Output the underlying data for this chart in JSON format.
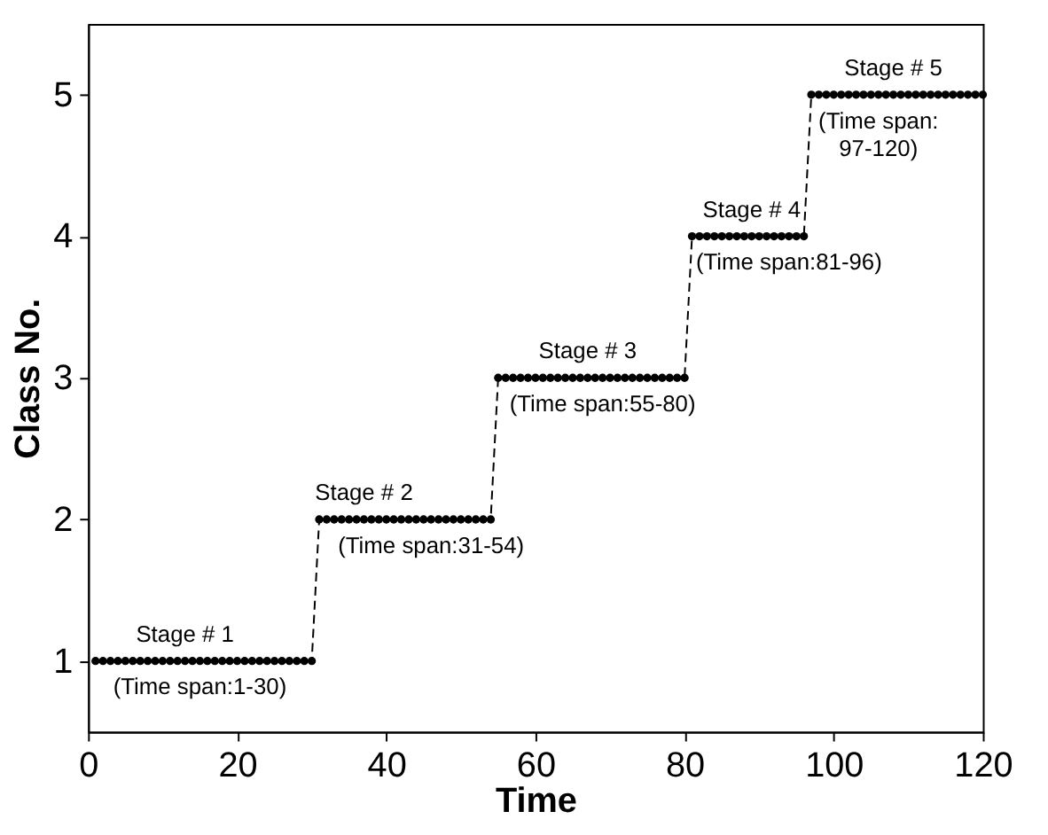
{
  "chart_data": {
    "type": "line",
    "xlabel": "Time",
    "ylabel": "Class No.",
    "x": [
      1,
      2,
      3,
      4,
      5,
      6,
      7,
      8,
      9,
      10,
      11,
      12,
      13,
      14,
      15,
      16,
      17,
      18,
      19,
      20,
      21,
      22,
      23,
      24,
      25,
      26,
      27,
      28,
      29,
      30,
      31,
      32,
      33,
      34,
      35,
      36,
      37,
      38,
      39,
      40,
      41,
      42,
      43,
      44,
      45,
      46,
      47,
      48,
      49,
      50,
      51,
      52,
      53,
      54,
      55,
      56,
      57,
      58,
      59,
      60,
      61,
      62,
      63,
      64,
      65,
      66,
      67,
      68,
      69,
      70,
      71,
      72,
      73,
      74,
      75,
      76,
      77,
      78,
      79,
      80,
      81,
      82,
      83,
      84,
      85,
      86,
      87,
      88,
      89,
      90,
      91,
      92,
      93,
      94,
      95,
      96,
      97,
      98,
      99,
      100,
      101,
      102,
      103,
      104,
      105,
      106,
      107,
      108,
      109,
      110,
      111,
      112,
      113,
      114,
      115,
      116,
      117,
      118,
      119,
      120
    ],
    "series": [
      {
        "color": "#000000",
        "values": [
          1,
          1,
          1,
          1,
          1,
          1,
          1,
          1,
          1,
          1,
          1,
          1,
          1,
          1,
          1,
          1,
          1,
          1,
          1,
          1,
          1,
          1,
          1,
          1,
          1,
          1,
          1,
          1,
          1,
          1,
          2,
          2,
          2,
          2,
          2,
          2,
          2,
          2,
          2,
          2,
          2,
          2,
          2,
          2,
          2,
          2,
          2,
          2,
          2,
          2,
          2,
          2,
          2,
          2,
          3,
          3,
          3,
          3,
          3,
          3,
          3,
          3,
          3,
          3,
          3,
          3,
          3,
          3,
          3,
          3,
          3,
          3,
          3,
          3,
          3,
          3,
          3,
          3,
          3,
          3,
          4,
          4,
          4,
          4,
          4,
          4,
          4,
          4,
          4,
          4,
          4,
          4,
          4,
          4,
          4,
          4,
          5,
          5,
          5,
          5,
          5,
          5,
          5,
          5,
          5,
          5,
          5,
          5,
          5,
          5,
          5,
          5,
          5,
          5,
          5,
          5,
          5,
          5,
          5,
          5
        ]
      }
    ],
    "xlim": [
      0,
      120
    ],
    "xticks": [
      0,
      20,
      40,
      60,
      80,
      100,
      120
    ],
    "ylim": [
      0.5,
      5.5
    ],
    "yticks": [
      1,
      2,
      3,
      4,
      5
    ],
    "marker": "circle",
    "line_style": "dashed",
    "grid": false,
    "legend": false,
    "annotations": [
      {
        "text": "Stage # 1",
        "x": 13,
        "y": 1
      },
      {
        "text": "(Time span:1-30)",
        "x": 15,
        "y": 1
      },
      {
        "text": "Stage # 2",
        "x": 37,
        "y": 2
      },
      {
        "text": "(Time span:31-54)",
        "x": 46,
        "y": 2
      },
      {
        "text": "Stage # 3",
        "x": 67,
        "y": 3
      },
      {
        "text": "(Time span:55-80)",
        "x": 69,
        "y": 3
      },
      {
        "text": "Stage # 4",
        "x": 89,
        "y": 4
      },
      {
        "text": "(Time span:81-96)",
        "x": 94,
        "y": 4
      },
      {
        "text": "Stage # 5",
        "x": 108,
        "y": 5
      },
      {
        "text": "(Time span:\n97-120)",
        "x": 106,
        "y": 5
      }
    ]
  }
}
